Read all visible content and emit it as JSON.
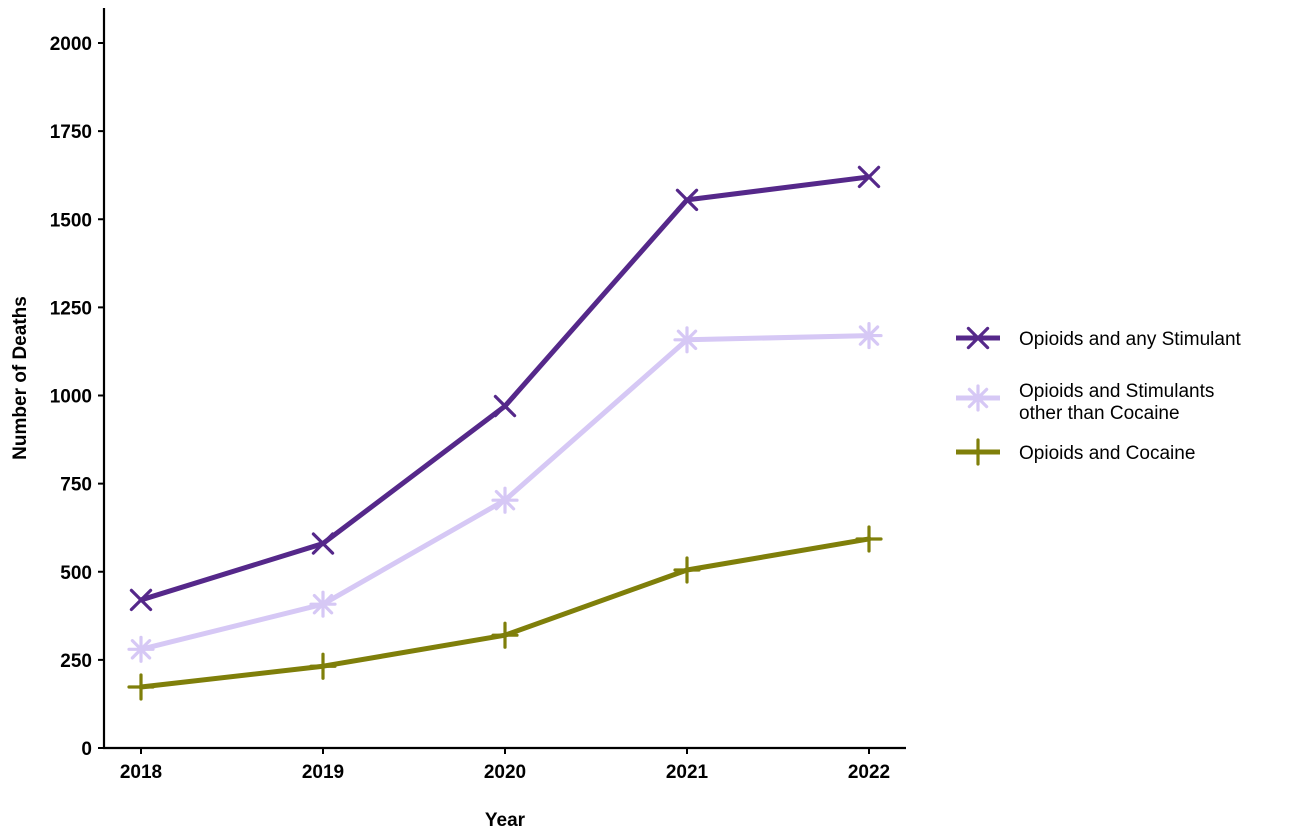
{
  "chart_data": {
    "type": "line",
    "title": "",
    "xlabel": "Year",
    "ylabel": "Number of Deaths",
    "categories": [
      "2018",
      "2019",
      "2020",
      "2021",
      "2022"
    ],
    "yticks": [
      "0",
      "250",
      "500",
      "750",
      "1000",
      "1250",
      "1500",
      "1750",
      "2000"
    ],
    "ylim": [
      0,
      2000
    ],
    "grid": false,
    "legend_position": "right",
    "series": [
      {
        "name": "Opioids and any Stimulant",
        "name_lines": [
          "Opioids and any Stimulant"
        ],
        "values": [
          420,
          580,
          970,
          1555,
          1620
        ],
        "color": "#55288a",
        "marker": "x-icon"
      },
      {
        "name": "Opioids and Stimulants other than Cocaine",
        "name_lines": [
          "Opioids and Stimulants",
          "other than Cocaine"
        ],
        "values": [
          280,
          408,
          703,
          1158,
          1170
        ],
        "color": "#d6c8f5",
        "marker": "asterisk-icon"
      },
      {
        "name": "Opioids and Cocaine",
        "name_lines": [
          "Opioids and Cocaine"
        ],
        "values": [
          173,
          232,
          320,
          505,
          593
        ],
        "color": "#7f7f0a",
        "marker": "plus-icon"
      }
    ]
  }
}
